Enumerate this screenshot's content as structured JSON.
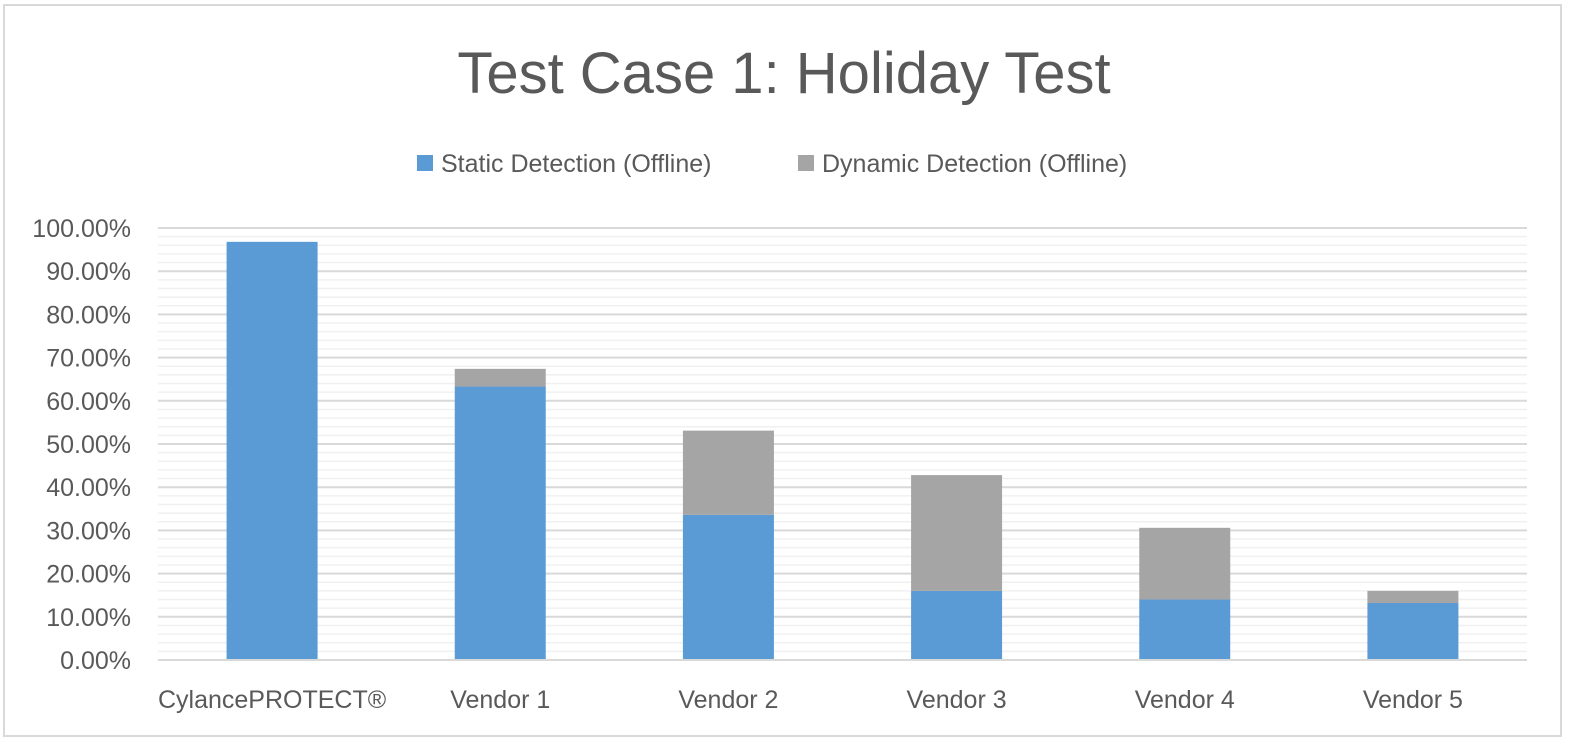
{
  "chart_data": {
    "type": "bar",
    "stacked": true,
    "title": "Test Case 1: Holiday Test",
    "xlabel": "",
    "ylabel": "",
    "categories": [
      "CylancePROTECT®",
      "Vendor 1",
      "Vendor 2",
      "Vendor 3",
      "Vendor 4",
      "Vendor 5"
    ],
    "series": [
      {
        "name": "Static Detection (Offline)",
        "color": "#5b9bd5",
        "values": [
          96.8,
          63.3,
          33.6,
          16.0,
          14.0,
          13.2
        ]
      },
      {
        "name": "Dynamic Detection (Offline)",
        "color": "#a5a5a5",
        "values": [
          0.0,
          4.1,
          19.5,
          26.8,
          16.6,
          2.8
        ]
      }
    ],
    "ylim": [
      0,
      100
    ],
    "yticks": [
      "0.00%",
      "10.00%",
      "20.00%",
      "30.00%",
      "40.00%",
      "50.00%",
      "60.00%",
      "70.00%",
      "80.00%",
      "90.00%",
      "100.00%"
    ],
    "grid": true,
    "legend": "top-center"
  }
}
